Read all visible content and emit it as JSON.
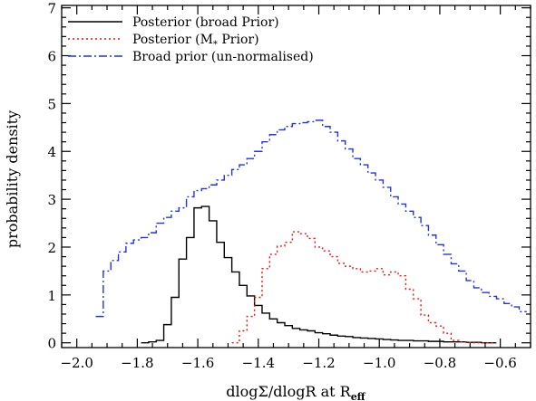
{
  "chart_data": {
    "type": "line",
    "title": "",
    "xlabel": "dlogΣ/dlogR  at R",
    "xlabel_subscript": "eff",
    "ylabel": "probability density",
    "xlim": [
      -2.05,
      -0.5
    ],
    "ylim": [
      -0.1,
      7.05
    ],
    "xticks": [
      -2.0,
      -1.8,
      -1.6,
      -1.4,
      -1.2,
      -1.0,
      -0.8,
      -0.6
    ],
    "xtick_labels": [
      "−2.0",
      "−1.8",
      "−1.6",
      "−1.4",
      "−1.2",
      "−1.0",
      "−0.8",
      "−0.6"
    ],
    "yticks": [
      0,
      1,
      2,
      3,
      4,
      5,
      6,
      7
    ],
    "ytick_labels": [
      "0",
      "1",
      "2",
      "3",
      "4",
      "5",
      "6",
      "7"
    ],
    "legend_position": "top-left",
    "drawstyle": "steps",
    "bin_width": 0.025,
    "series": [
      {
        "name": "Posterior (broad Prior)",
        "color": "#000000",
        "dash": "solid",
        "x": [
          -1.775,
          -1.75,
          -1.725,
          -1.7,
          -1.675,
          -1.65,
          -1.625,
          -1.6,
          -1.575,
          -1.55,
          -1.525,
          -1.5,
          -1.475,
          -1.45,
          -1.425,
          -1.4,
          -1.375,
          -1.35,
          -1.325,
          -1.3,
          -1.275,
          -1.25,
          -1.225,
          -1.2,
          -1.175,
          -1.15,
          -1.125,
          -1.1,
          -1.075,
          -1.05,
          -1.025,
          -1.0,
          -0.975,
          -0.95,
          -0.925,
          -0.9,
          -0.875,
          -0.85,
          -0.825,
          -0.8,
          -0.775,
          -0.75,
          -0.725,
          -0.7,
          -0.675,
          -0.65,
          -0.625
        ],
        "values": [
          0.0,
          0.02,
          0.05,
          0.38,
          0.95,
          1.75,
          2.2,
          2.82,
          2.85,
          2.55,
          2.1,
          1.78,
          1.48,
          1.2,
          0.98,
          0.78,
          0.62,
          0.5,
          0.42,
          0.36,
          0.3,
          0.27,
          0.25,
          0.21,
          0.19,
          0.16,
          0.14,
          0.13,
          0.11,
          0.1,
          0.09,
          0.08,
          0.07,
          0.06,
          0.05,
          0.05,
          0.04,
          0.04,
          0.03,
          0.03,
          0.02,
          0.02,
          0.02,
          0.01,
          0.01,
          0.0,
          0.0
        ]
      },
      {
        "name": "Posterior (M* Prior)",
        "name_display": "Posterior (M",
        "name_subscript": "*",
        "name_suffix": " Prior)",
        "color": "#ee1111",
        "dash": "dotted",
        "x": [
          -1.475,
          -1.45,
          -1.425,
          -1.4,
          -1.375,
          -1.35,
          -1.325,
          -1.3,
          -1.275,
          -1.25,
          -1.225,
          -1.2,
          -1.175,
          -1.15,
          -1.125,
          -1.1,
          -1.075,
          -1.05,
          -1.025,
          -1.0,
          -0.975,
          -0.95,
          -0.925,
          -0.9,
          -0.875,
          -0.85,
          -0.825,
          -0.8,
          -0.775,
          -0.75,
          -0.725,
          -0.7,
          -0.675,
          -0.65,
          -0.625
        ],
        "values": [
          0.0,
          0.25,
          0.55,
          0.95,
          1.55,
          1.85,
          2.02,
          2.1,
          2.32,
          2.28,
          2.18,
          2.0,
          1.92,
          1.8,
          1.66,
          1.6,
          1.55,
          1.48,
          1.5,
          1.55,
          1.42,
          1.48,
          1.4,
          1.12,
          0.92,
          0.58,
          0.42,
          0.35,
          0.2,
          0.05,
          0.02,
          0.01,
          0.0,
          0.0,
          0.0
        ]
      },
      {
        "name": "Broad prior (un-normalised)",
        "color": "#2233dd",
        "dash": "dashdot",
        "x": [
          -1.925,
          -1.9,
          -1.875,
          -1.85,
          -1.825,
          -1.8,
          -1.775,
          -1.75,
          -1.725,
          -1.7,
          -1.675,
          -1.65,
          -1.625,
          -1.6,
          -1.575,
          -1.55,
          -1.525,
          -1.5,
          -1.475,
          -1.45,
          -1.425,
          -1.4,
          -1.375,
          -1.35,
          -1.325,
          -1.3,
          -1.275,
          -1.25,
          -1.225,
          -1.2,
          -1.175,
          -1.15,
          -1.125,
          -1.1,
          -1.075,
          -1.05,
          -1.025,
          -1.0,
          -0.975,
          -0.95,
          -0.925,
          -0.9,
          -0.875,
          -0.85,
          -0.825,
          -0.8,
          -0.775,
          -0.75,
          -0.725,
          -0.7,
          -0.675,
          -0.65,
          -0.625,
          -0.6,
          -0.575,
          -0.55,
          -0.525
        ],
        "values": [
          0.55,
          1.5,
          1.72,
          1.9,
          2.08,
          2.15,
          2.2,
          2.3,
          2.5,
          2.62,
          2.75,
          2.82,
          3.05,
          3.18,
          3.22,
          3.3,
          3.4,
          3.5,
          3.62,
          3.72,
          3.85,
          4.0,
          4.2,
          4.35,
          4.45,
          4.52,
          4.58,
          4.6,
          4.62,
          4.65,
          4.52,
          4.4,
          4.22,
          4.05,
          3.85,
          3.72,
          3.55,
          3.4,
          3.25,
          3.05,
          2.9,
          2.75,
          2.62,
          2.45,
          2.25,
          2.05,
          1.85,
          1.65,
          1.5,
          1.3,
          1.15,
          1.05,
          0.97,
          0.92,
          0.82,
          0.75,
          0.65
        ]
      }
    ]
  }
}
